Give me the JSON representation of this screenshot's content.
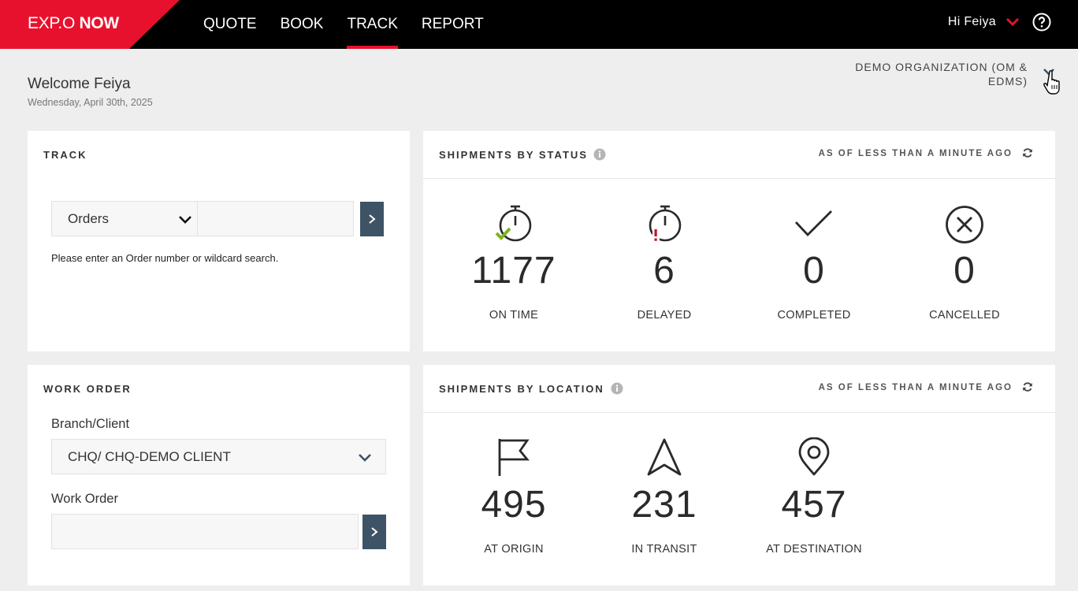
{
  "header": {
    "logo_prefix": "EXP.O",
    "logo_suffix": "NOW",
    "nav": [
      {
        "label": "QUOTE"
      },
      {
        "label": "BOOK"
      },
      {
        "label": "TRACK",
        "active": true
      },
      {
        "label": "REPORT"
      }
    ],
    "greeting": "Hi Feiya",
    "accent_color": "#e8112d"
  },
  "welcome": {
    "title": "Welcome Feiya",
    "date": "Wednesday, April 30th, 2025",
    "organization": "DEMO ORGANIZATION (OM & EDMS)"
  },
  "track": {
    "title": "TRACK",
    "type_selected": "Orders",
    "search_value": "",
    "hint": "Please enter an Order number or wildcard search."
  },
  "work_order": {
    "title": "WORK ORDER",
    "branch_label": "Branch/Client",
    "branch_selected": "CHQ/ CHQ-DEMO CLIENT",
    "wo_label": "Work Order",
    "wo_value": ""
  },
  "status": {
    "title": "SHIPMENTS BY STATUS",
    "as_of": "AS OF LESS THAN A MINUTE AGO",
    "items": [
      {
        "value": "1177",
        "label": "ON TIME",
        "icon": "stopwatch-check-icon"
      },
      {
        "value": "6",
        "label": "DELAYED",
        "icon": "stopwatch-alert-icon"
      },
      {
        "value": "0",
        "label": "COMPLETED",
        "icon": "checkmark-icon"
      },
      {
        "value": "0",
        "label": "CANCELLED",
        "icon": "circle-x-icon"
      }
    ]
  },
  "location": {
    "title": "SHIPMENTS BY LOCATION",
    "as_of": "AS OF LESS THAN A MINUTE AGO",
    "items": [
      {
        "value": "495",
        "label": "AT ORIGIN",
        "icon": "flag-icon"
      },
      {
        "value": "231",
        "label": "IN TRANSIT",
        "icon": "navigation-arrow-icon"
      },
      {
        "value": "457",
        "label": "AT DESTINATION",
        "icon": "map-pin-icon"
      }
    ]
  }
}
